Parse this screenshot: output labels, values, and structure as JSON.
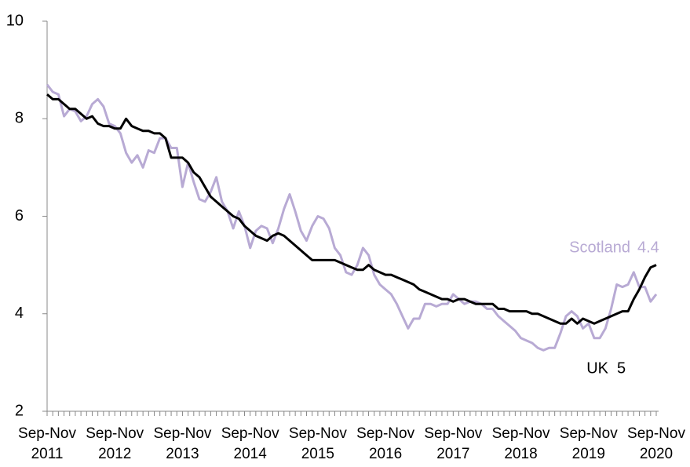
{
  "chart_data": {
    "type": "line",
    "categories": [
      "Sep-Nov 2011",
      null,
      null,
      null,
      null,
      null,
      null,
      null,
      null,
      null,
      null,
      null,
      "Sep-Nov 2012",
      null,
      null,
      null,
      null,
      null,
      null,
      null,
      null,
      null,
      null,
      null,
      "Sep-Nov 2013",
      null,
      null,
      null,
      null,
      null,
      null,
      null,
      null,
      null,
      null,
      null,
      "Sep-Nov 2014",
      null,
      null,
      null,
      null,
      null,
      null,
      null,
      null,
      null,
      null,
      null,
      "Sep-Nov 2015",
      null,
      null,
      null,
      null,
      null,
      null,
      null,
      null,
      null,
      null,
      null,
      "Sep-Nov 2016",
      null,
      null,
      null,
      null,
      null,
      null,
      null,
      null,
      null,
      null,
      null,
      "Sep-Nov 2017",
      null,
      null,
      null,
      null,
      null,
      null,
      null,
      null,
      null,
      null,
      null,
      "Sep-Nov 2018",
      null,
      null,
      null,
      null,
      null,
      null,
      null,
      null,
      null,
      null,
      null,
      "Sep-Nov 2019",
      null,
      null,
      null,
      null,
      null,
      null,
      null,
      null,
      null,
      null,
      null,
      "Sep-Nov 2020"
    ],
    "series": [
      {
        "name": "UK",
        "color": "#000000",
        "values": [
          8.5,
          8.4,
          8.4,
          8.3,
          8.2,
          8.2,
          8.1,
          8.0,
          8.05,
          7.9,
          7.85,
          7.85,
          7.8,
          7.8,
          8.0,
          7.85,
          7.8,
          7.75,
          7.75,
          7.7,
          7.7,
          7.6,
          7.2,
          7.2,
          7.2,
          7.1,
          6.9,
          6.8,
          6.6,
          6.4,
          6.3,
          6.2,
          6.1,
          6.0,
          5.95,
          5.8,
          5.7,
          5.6,
          5.55,
          5.5,
          5.6,
          5.65,
          5.6,
          5.5,
          5.4,
          5.3,
          5.2,
          5.1,
          5.1,
          5.1,
          5.1,
          5.1,
          5.05,
          5.0,
          4.95,
          4.9,
          4.9,
          5.0,
          4.9,
          4.85,
          4.8,
          4.8,
          4.75,
          4.7,
          4.65,
          4.6,
          4.5,
          4.45,
          4.4,
          4.35,
          4.3,
          4.3,
          4.25,
          4.3,
          4.3,
          4.25,
          4.2,
          4.2,
          4.2,
          4.2,
          4.1,
          4.1,
          4.05,
          4.05,
          4.05,
          4.05,
          4.0,
          4.0,
          3.95,
          3.9,
          3.85,
          3.8,
          3.8,
          3.9,
          3.8,
          3.9,
          3.85,
          3.8,
          3.85,
          3.9,
          3.95,
          4.0,
          4.05,
          4.05,
          4.3,
          4.5,
          4.75,
          4.95,
          5.0
        ]
      },
      {
        "name": "Scotland",
        "color": "#b8aad4",
        "values": [
          8.7,
          8.55,
          8.5,
          8.05,
          8.2,
          8.15,
          7.95,
          8.05,
          8.3,
          8.4,
          8.25,
          7.9,
          7.85,
          7.7,
          7.3,
          7.1,
          7.25,
          7.0,
          7.35,
          7.3,
          7.6,
          7.6,
          7.4,
          7.4,
          6.6,
          7.1,
          6.7,
          6.35,
          6.3,
          6.5,
          6.8,
          6.3,
          6.1,
          5.75,
          6.1,
          5.8,
          5.35,
          5.7,
          5.8,
          5.75,
          5.45,
          5.75,
          6.15,
          6.45,
          6.1,
          5.7,
          5.5,
          5.8,
          6.0,
          5.95,
          5.75,
          5.35,
          5.2,
          4.85,
          4.8,
          5.0,
          5.35,
          5.2,
          4.8,
          4.6,
          4.5,
          4.4,
          4.2,
          3.95,
          3.7,
          3.9,
          3.9,
          4.2,
          4.2,
          4.15,
          4.2,
          4.2,
          4.4,
          4.3,
          4.2,
          4.25,
          4.25,
          4.2,
          4.1,
          4.1,
          3.95,
          3.85,
          3.75,
          3.65,
          3.5,
          3.45,
          3.4,
          3.3,
          3.25,
          3.3,
          3.3,
          3.6,
          3.95,
          4.05,
          3.95,
          3.7,
          3.8,
          3.5,
          3.5,
          3.7,
          4.1,
          4.6,
          4.55,
          4.6,
          4.85,
          4.55,
          4.55,
          4.25,
          4.4
        ]
      }
    ],
    "ylim": [
      2,
      10
    ],
    "yticks": [
      2,
      4,
      6,
      8,
      10
    ],
    "grid": false
  }
}
